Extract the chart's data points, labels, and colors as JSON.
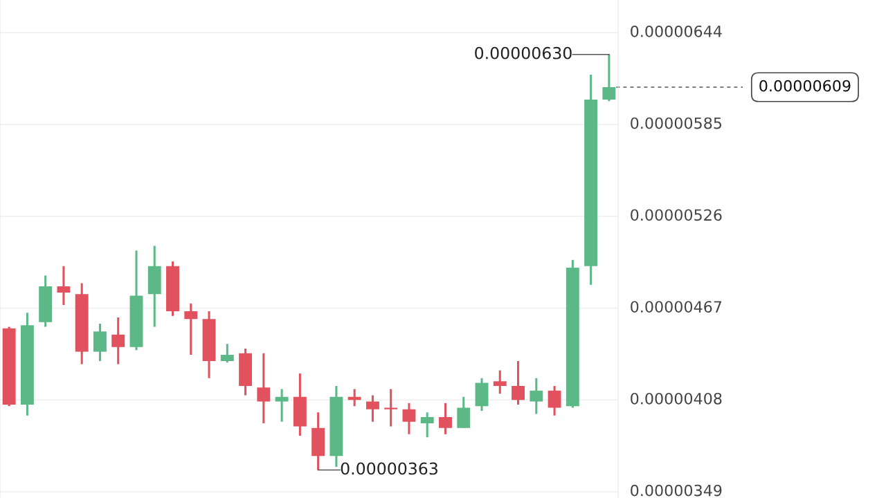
{
  "chart_data": {
    "type": "candlestick",
    "categories": [
      null,
      null,
      null,
      null,
      null,
      null,
      null,
      null,
      null,
      null,
      null,
      null,
      null,
      null,
      null,
      null,
      null,
      null,
      null,
      null,
      null,
      null,
      null,
      null,
      null,
      null,
      null,
      null,
      null,
      null,
      null,
      null,
      null,
      null
    ],
    "ohlc": [
      [
        4.54e-06,
        4.55e-06,
        4.04e-06,
        4.05e-06
      ],
      [
        4.05e-06,
        4.64e-06,
        3.98e-06,
        4.56e-06
      ],
      [
        4.58e-06,
        4.88e-06,
        4.55e-06,
        4.81e-06
      ],
      [
        4.81e-06,
        4.94e-06,
        4.69e-06,
        4.77e-06
      ],
      [
        4.76e-06,
        4.83e-06,
        4.31e-06,
        4.39e-06
      ],
      [
        4.39e-06,
        4.57e-06,
        4.33e-06,
        4.52e-06
      ],
      [
        4.5e-06,
        4.61e-06,
        4.31e-06,
        4.42e-06
      ],
      [
        4.42e-06,
        5.04e-06,
        4.4e-06,
        4.75e-06
      ],
      [
        4.76e-06,
        5.07e-06,
        4.55e-06,
        4.94e-06
      ],
      [
        4.94e-06,
        4.97e-06,
        4.62e-06,
        4.65e-06
      ],
      [
        4.65e-06,
        4.7e-06,
        4.37e-06,
        4.6e-06
      ],
      [
        4.6e-06,
        4.65e-06,
        4.22e-06,
        4.33e-06
      ],
      [
        4.33e-06,
        4.44e-06,
        4.32e-06,
        4.37e-06
      ],
      [
        4.38e-06,
        4.41e-06,
        4.11e-06,
        4.17e-06
      ],
      [
        4.16e-06,
        4.38e-06,
        3.93e-06,
        4.07e-06
      ],
      [
        4.07e-06,
        4.15e-06,
        3.94e-06,
        4.1e-06
      ],
      [
        4.1e-06,
        4.25e-06,
        3.85e-06,
        3.91e-06
      ],
      [
        3.9e-06,
        4e-06,
        3.63e-06,
        3.72e-06
      ],
      [
        3.72e-06,
        4.17e-06,
        3.65e-06,
        4.1e-06
      ],
      [
        4.1e-06,
        4.15e-06,
        4.04e-06,
        4.08e-06
      ],
      [
        4.07e-06,
        4.11e-06,
        3.94e-06,
        4.02e-06
      ],
      [
        4.03e-06,
        4.15e-06,
        3.91e-06,
        4.02e-06
      ],
      [
        4.02e-06,
        4.06e-06,
        3.86e-06,
        3.94e-06
      ],
      [
        3.93e-06,
        4e-06,
        3.84e-06,
        3.97e-06
      ],
      [
        3.97e-06,
        4.06e-06,
        3.86e-06,
        3.9e-06
      ],
      [
        3.9e-06,
        4.1e-06,
        3.9e-06,
        4.03e-06
      ],
      [
        4.04e-06,
        4.22e-06,
        4.01e-06,
        4.19e-06
      ],
      [
        4.2e-06,
        4.27e-06,
        4.12e-06,
        4.17e-06
      ],
      [
        4.17e-06,
        4.33e-06,
        4.05e-06,
        4.08e-06
      ],
      [
        4.07e-06,
        4.22e-06,
        3.99e-06,
        4.14e-06
      ],
      [
        4.14e-06,
        4.17e-06,
        3.98e-06,
        4.03e-06
      ],
      [
        4.04e-06,
        4.98e-06,
        4.03e-06,
        4.93e-06
      ],
      [
        4.94e-06,
        6.17e-06,
        4.82e-06,
        6.01e-06
      ],
      [
        6.01e-06,
        6.3e-06,
        6e-06,
        6.09e-06
      ]
    ],
    "colors": [
      "#e2515e",
      "#5cb987",
      "#5cb987",
      "#e2515e",
      "#e2515e",
      "#5cb987",
      "#e2515e",
      "#5cb987",
      "#5cb987",
      "#e2515e",
      "#e2515e",
      "#e2515e",
      "#5cb987",
      "#e2515e",
      "#e2515e",
      "#5cb987",
      "#e2515e",
      "#e2515e",
      "#5cb987",
      "#e2515e",
      "#e2515e",
      "#e2515e",
      "#e2515e",
      "#5cb987",
      "#e2515e",
      "#5cb987",
      "#5cb987",
      "#e2515e",
      "#e2515e",
      "#5cb987",
      "#e2515e",
      "#5cb987",
      "#5cb987",
      "#5cb987"
    ],
    "ylim": [
      3.45e-06,
      6.65e-06
    ],
    "yticks": [
      {
        "value": 3.49e-06,
        "label": "0.00000349"
      },
      {
        "value": 4.08e-06,
        "label": "0.00000408"
      },
      {
        "value": 4.67e-06,
        "label": "0.00000467"
      },
      {
        "value": 5.26e-06,
        "label": "0.00000526"
      },
      {
        "value": 5.85e-06,
        "label": "0.00000585"
      },
      {
        "value": 6.44e-06,
        "label": "0.00000644"
      }
    ],
    "grid": "y",
    "ref_lines": [
      {
        "axis": "y",
        "value": 6.09e-06,
        "label": "0.00000609",
        "line_style": "dashed",
        "color": "#555555"
      }
    ],
    "annotations": [
      "0.00000630",
      "0.00000363"
    ]
  }
}
